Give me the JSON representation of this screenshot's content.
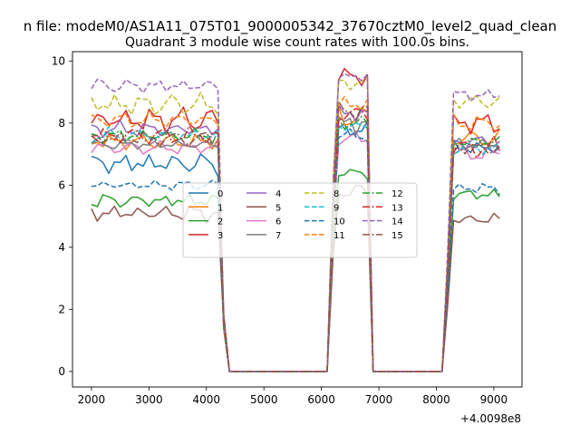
{
  "figure": {
    "suptitle": "n file: modeM0/AS1A11_075T01_9000005342_37670cztM0_level2_quad_clean",
    "offset_label": "+4.0098e8"
  },
  "chart_data": {
    "type": "line",
    "title": "Quadrant 3 module wise count rates with 100.0s bins.",
    "xlabel": "",
    "ylabel": "",
    "xlim": [
      1670,
      9490
    ],
    "ylim": [
      -0.5,
      10.3
    ],
    "x_offset": 400980000,
    "xticks": [
      2000,
      3000,
      4000,
      5000,
      6000,
      7000,
      8000,
      9000
    ],
    "yticks": [
      0,
      2,
      4,
      6,
      8,
      10
    ],
    "grid": false,
    "legend": {
      "location": "center",
      "columns": 4
    },
    "segments": [
      [
        2000,
        4200
      ],
      [
        4300,
        6100
      ],
      [
        6200,
        6900
      ],
      [
        7000,
        8100
      ],
      [
        8200,
        9100
      ]
    ],
    "series": [
      {
        "name": "0",
        "color": "#1f77b4",
        "dash": "solid",
        "level1": 6.7,
        "amp1": 0.45,
        "level2": 7.8,
        "amp2": 0.3,
        "level3": 7.2,
        "amp3": 0.35
      },
      {
        "name": "1",
        "color": "#ff7f0e",
        "dash": "solid",
        "level1": 7.4,
        "amp1": 0.3,
        "level2": 8.2,
        "amp2": 0.5,
        "level3": 7.5,
        "amp3": 0.35
      },
      {
        "name": "2",
        "color": "#2ca02c",
        "dash": "solid",
        "level1": 5.5,
        "amp1": 0.3,
        "level2": 6.4,
        "amp2": 0.3,
        "level3": 5.7,
        "amp3": 0.25
      },
      {
        "name": "3",
        "color": "#d62728",
        "dash": "solid",
        "level1": 8.1,
        "amp1": 0.5,
        "level2": 9.5,
        "amp2": 0.3,
        "level3": 8.0,
        "amp3": 0.45
      },
      {
        "name": "4",
        "color": "#9467bd",
        "dash": "solid",
        "level1": 7.8,
        "amp1": 0.3,
        "level2": 8.3,
        "amp2": 0.4,
        "level3": 7.4,
        "amp3": 0.3
      },
      {
        "name": "5",
        "color": "#8c564b",
        "dash": "solid",
        "level1": 5.1,
        "amp1": 0.35,
        "level2": 5.8,
        "amp2": 0.35,
        "level3": 4.9,
        "amp3": 0.3
      },
      {
        "name": "6",
        "color": "#e377c2",
        "dash": "solid",
        "level1": 7.2,
        "amp1": 0.25,
        "level2": 7.5,
        "amp2": 0.3,
        "level3": 7.0,
        "amp3": 0.3
      },
      {
        "name": "7",
        "color": "#7f7f7f",
        "dash": "solid",
        "level1": 7.3,
        "amp1": 0.2,
        "level2": 8.0,
        "amp2": 0.5,
        "level3": 7.3,
        "amp3": 0.3
      },
      {
        "name": "8",
        "color": "#bcbd22",
        "dash": "dashed",
        "level1": 8.6,
        "amp1": 0.45,
        "level2": 9.3,
        "amp2": 0.25,
        "level3": 8.7,
        "amp3": 0.3
      },
      {
        "name": "9",
        "color": "#17becf",
        "dash": "dashed",
        "level1": 7.6,
        "amp1": 0.3,
        "level2": 7.9,
        "amp2": 0.3,
        "level3": 7.2,
        "amp3": 0.3
      },
      {
        "name": "10",
        "color": "#1f77b4",
        "dash": "dashed",
        "level1": 6.0,
        "amp1": 0.2,
        "level2": 7.6,
        "amp2": 0.25,
        "level3": 5.9,
        "amp3": 0.25
      },
      {
        "name": "11",
        "color": "#ff7f0e",
        "dash": "dashed",
        "level1": 8.1,
        "amp1": 0.3,
        "level2": 8.6,
        "amp2": 0.3,
        "level3": 8.0,
        "amp3": 0.3
      },
      {
        "name": "12",
        "color": "#2ca02c",
        "dash": "dashdot",
        "level1": 7.6,
        "amp1": 0.3,
        "level2": 8.0,
        "amp2": 0.3,
        "level3": 7.4,
        "amp3": 0.3
      },
      {
        "name": "13",
        "color": "#d62728",
        "dash": "dashdot",
        "level1": 7.6,
        "amp1": 0.35,
        "level2": 8.3,
        "amp2": 0.3,
        "level3": 7.2,
        "amp3": 0.4
      },
      {
        "name": "14",
        "color": "#9467bd",
        "dash": "dashed",
        "level1": 9.2,
        "amp1": 0.3,
        "level2": 9.5,
        "amp2": 0.2,
        "level3": 8.9,
        "amp3": 0.25
      },
      {
        "name": "15",
        "color": "#8c564b",
        "dash": "dashdot",
        "level1": 7.5,
        "amp1": 0.3,
        "level2": 8.4,
        "amp2": 0.3,
        "level3": 7.2,
        "amp3": 0.3
      }
    ]
  }
}
